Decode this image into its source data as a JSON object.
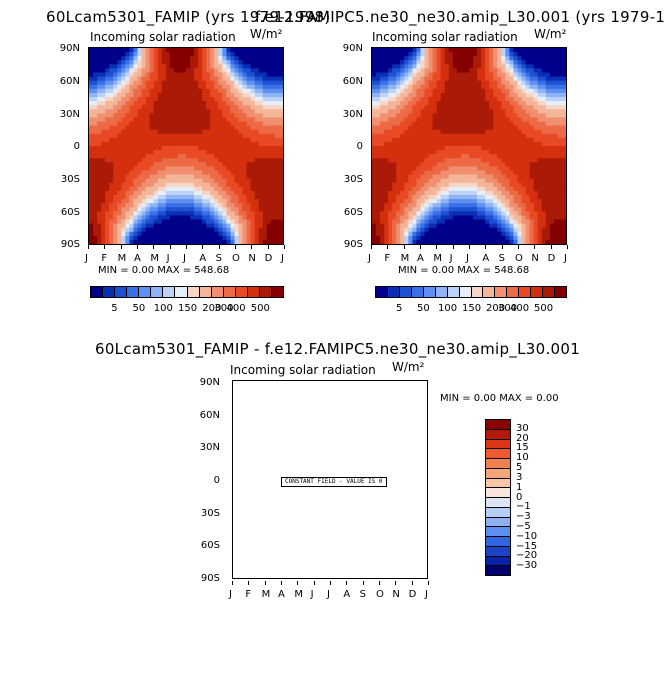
{
  "panel_a": {
    "title": "60Lcam5301_FAMIP (yrs 1979-1998)",
    "subtitle": "Incoming solar radiation",
    "units": "W/m²",
    "min_max": "MIN =     0.00 MAX = 548.68"
  },
  "panel_b": {
    "title": "f.e12.FAMIPC5.ne30_ne30.amip_L30.001 (yrs 1979-19",
    "subtitle": "Incoming solar radiation",
    "units": "W/m²",
    "min_max": "MIN =     0.00 MAX = 548.68"
  },
  "panel_c": {
    "title": "60Lcam5301_FAMIP - f.e12.FAMIPC5.ne30_ne30.amip_L30.001",
    "subtitle": "Incoming solar radiation",
    "units": "W/m²",
    "min_max": "MIN =     0.00 MAX =     0.00",
    "constant_label": "CONSTANT FIELD - VALUE IS 0"
  },
  "months": [
    "J",
    "F",
    "M",
    "A",
    "M",
    "J",
    "J",
    "A",
    "S",
    "O",
    "N",
    "D",
    "J"
  ],
  "latitudes": [
    "90N",
    "60N",
    "30N",
    "0",
    "30S",
    "60S",
    "90S"
  ],
  "colorbar_labels": [
    "5",
    "50",
    "100",
    "150",
    "200",
    "300",
    "400",
    "500"
  ],
  "colorbar_colors": [
    "#00008b",
    "#0a2fb4",
    "#1e50d2",
    "#3a70e6",
    "#5d90f0",
    "#8fb4f5",
    "#bcd3f7",
    "#e6eefa",
    "#f7d6c6",
    "#f4b69a",
    "#f09070",
    "#ec6a46",
    "#e84a26",
    "#d4300f",
    "#aa1a06",
    "#840000"
  ],
  "diff_colorbar_labels": [
    "30",
    "20",
    "15",
    "10",
    "5",
    "3",
    "1",
    "0",
    "-1",
    "-3",
    "-5",
    "-10",
    "-15",
    "-20",
    "-30"
  ],
  "diff_colorbar_colors": [
    "#8b0000",
    "#b01a0a",
    "#d9361a",
    "#ec5a2d",
    "#f08050",
    "#f4a57a",
    "#f7c7a8",
    "#f8e6dc",
    "#dce6f7",
    "#b6cdf5",
    "#8cb0f2",
    "#5d8ff0",
    "#2f66e0",
    "#1a44c8",
    "#0a22a8",
    "#00006e"
  ],
  "chart_data": [
    {
      "type": "heatmap",
      "title": "60Lcam5301_FAMIP (yrs 1979-1998)",
      "subtitle": "Incoming solar radiation",
      "units": "W/m²",
      "x_ticks": [
        "J",
        "F",
        "M",
        "A",
        "M",
        "J",
        "J",
        "A",
        "S",
        "O",
        "N",
        "D",
        "J"
      ],
      "y_ticks": [
        "90N",
        "60N",
        "30N",
        "0",
        "30S",
        "60S",
        "90S"
      ],
      "min": 0.0,
      "max": 548.68,
      "colorbar_levels": [
        5,
        50,
        100,
        150,
        200,
        300,
        400,
        500
      ]
    },
    {
      "type": "heatmap",
      "title": "f.e12.FAMIPC5.ne30_ne30.amip_L30.001 (yrs 1979-19",
      "subtitle": "Incoming solar radiation",
      "units": "W/m²",
      "x_ticks": [
        "J",
        "F",
        "M",
        "A",
        "M",
        "J",
        "J",
        "A",
        "S",
        "O",
        "N",
        "D",
        "J"
      ],
      "y_ticks": [
        "90N",
        "60N",
        "30N",
        "0",
        "30S",
        "60S",
        "90S"
      ],
      "min": 0.0,
      "max": 548.68,
      "colorbar_levels": [
        5,
        50,
        100,
        150,
        200,
        300,
        400,
        500
      ]
    },
    {
      "type": "heatmap",
      "title": "60Lcam5301_FAMIP - f.e12.FAMIPC5.ne30_ne30.amip_L30.001",
      "subtitle": "Incoming solar radiation",
      "units": "W/m²",
      "x_ticks": [
        "J",
        "F",
        "M",
        "A",
        "M",
        "J",
        "J",
        "A",
        "S",
        "O",
        "N",
        "D",
        "J"
      ],
      "y_ticks": [
        "90N",
        "60N",
        "30N",
        "0",
        "30S",
        "60S",
        "90S"
      ],
      "min": 0.0,
      "max": 0.0,
      "constant_value": 0,
      "colorbar_levels": [
        30,
        20,
        15,
        10,
        5,
        3,
        1,
        0,
        -1,
        -3,
        -5,
        -10,
        -15,
        -20,
        -30
      ]
    }
  ]
}
